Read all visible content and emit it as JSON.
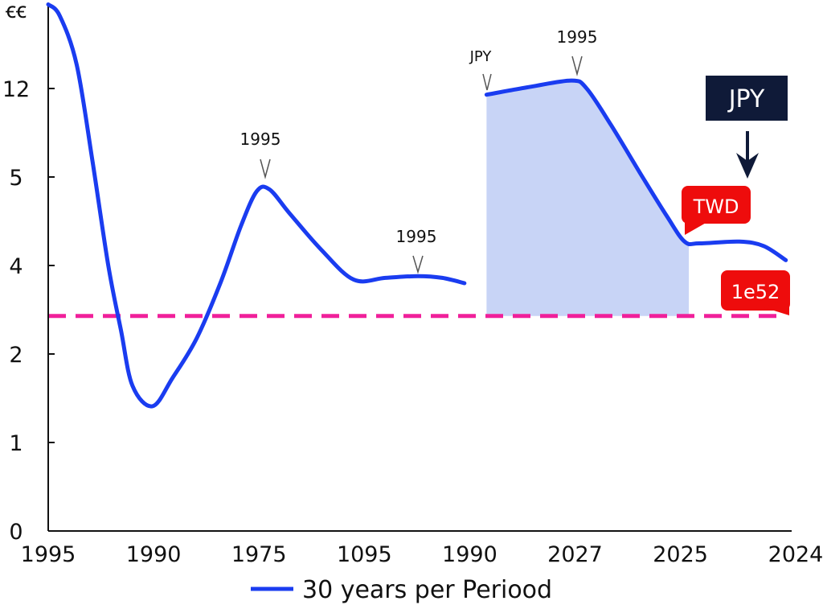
{
  "chart_data": {
    "type": "line",
    "title": "",
    "xlabel": "",
    "ylabel": "",
    "x_tick_labels": [
      "1995",
      "1990",
      "1975",
      "1095",
      "1990",
      "2027",
      "2025",
      "2024"
    ],
    "y_tick_labels": [
      "0",
      "1",
      "2",
      "4",
      "5",
      "12",
      "ꞓꞓ"
    ],
    "axis_note": "Tick labels are non-monotonic; x and y values are given as positions along the printed tick sequence (0 = first tick).",
    "xlim": [
      0,
      7
    ],
    "ylim": [
      0,
      6
    ],
    "grid": false,
    "legend_position": "bottom",
    "series": [
      {
        "name": "30 years per Periood",
        "color": "#1a3cf0",
        "segments": [
          [
            [
              0,
              5.95
            ],
            [
              0.11,
              5.82
            ],
            [
              0.27,
              5.27
            ],
            [
              0.42,
              4.18
            ],
            [
              0.57,
              3.0
            ],
            [
              0.69,
              2.27
            ],
            [
              0.8,
              1.64
            ],
            [
              0.99,
              1.41
            ],
            [
              1.18,
              1.73
            ],
            [
              1.41,
              2.18
            ],
            [
              1.64,
              2.82
            ],
            [
              1.83,
              3.45
            ],
            [
              1.98,
              3.84
            ],
            [
              2.1,
              3.86
            ],
            [
              2.29,
              3.59
            ],
            [
              2.59,
              3.18
            ],
            [
              2.9,
              2.84
            ],
            [
              3.2,
              2.86
            ],
            [
              3.51,
              2.88
            ],
            [
              3.74,
              2.86
            ],
            [
              3.95,
              2.8
            ]
          ],
          [
            [
              4.16,
              4.93
            ],
            [
              4.58,
              5.02
            ],
            [
              4.97,
              5.09
            ],
            [
              5.11,
              5.0
            ],
            [
              5.34,
              4.59
            ],
            [
              5.64,
              4.0
            ],
            [
              5.87,
              3.56
            ],
            [
              6.04,
              3.27
            ],
            [
              6.18,
              3.25
            ],
            [
              6.56,
              3.27
            ],
            [
              6.79,
              3.22
            ],
            [
              7.0,
              3.06
            ]
          ]
        ]
      }
    ],
    "shaded_region": {
      "x_from": 4.16,
      "x_to": 6.08,
      "color": "#c8d4f6"
    },
    "reference_line": {
      "y": 2.43,
      "color": "#f0209a",
      "style": "dashed"
    },
    "annotations": [
      {
        "text": "1995",
        "x": 2.06,
        "y": 4.0,
        "style": "caret"
      },
      {
        "text": "1995",
        "x": 3.51,
        "y": 2.9,
        "style": "caret"
      },
      {
        "text": "JPY",
        "x": 4.16,
        "y": 5.0,
        "style": "caret"
      },
      {
        "text": "1995",
        "x": 4.97,
        "y": 5.2,
        "style": "caret"
      },
      {
        "text": "JPY",
        "style": "dark-box",
        "color": "#0f1a38"
      },
      {
        "text": "TWD",
        "style": "red-bubble",
        "color": "#ee0c0c"
      },
      {
        "text": "1e52",
        "style": "red-bubble",
        "color": "#ee0c0c"
      }
    ]
  }
}
